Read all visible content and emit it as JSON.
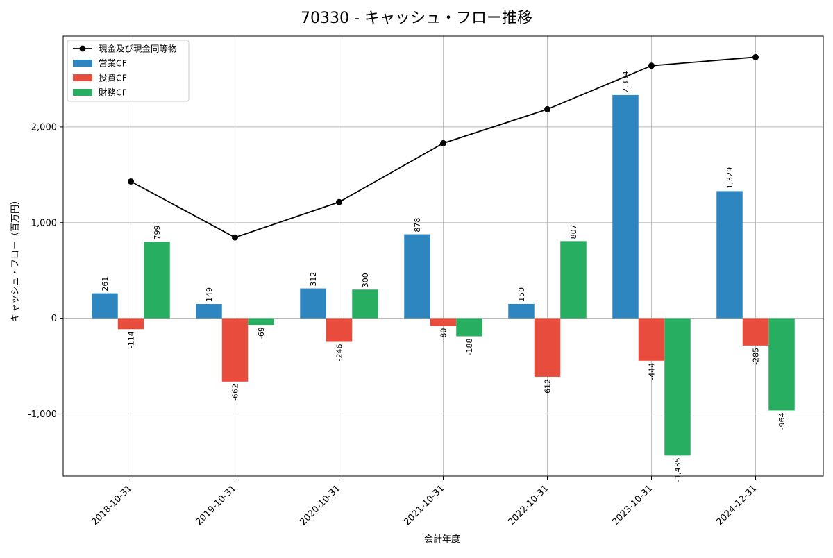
{
  "chart_data": {
    "type": "bar",
    "title": "70330 - キャッシュ・フロー推移",
    "xlabel": "会計年度",
    "ylabel": "キャッシュ・フロー（百万円）",
    "categories": [
      "2018-10-31",
      "2019-10-31",
      "2020-10-31",
      "2021-10-31",
      "2022-10-31",
      "2023-10-31",
      "2024-12-31"
    ],
    "series": [
      {
        "name": "営業CF",
        "kind": "bar",
        "color": "#2e86c1",
        "values": [
          261,
          149,
          312,
          878,
          150,
          2334,
          1329
        ],
        "labels": [
          "261",
          "149",
          "312",
          "878",
          "150",
          "2,334",
          "1,329"
        ]
      },
      {
        "name": "投資CF",
        "kind": "bar",
        "color": "#e74c3c",
        "values": [
          -114,
          -662,
          -246,
          -80,
          -612,
          -444,
          -285
        ],
        "labels": [
          "-114",
          "-662",
          "-246",
          "-80",
          "-612",
          "-444",
          "-285"
        ]
      },
      {
        "name": "財務CF",
        "kind": "bar",
        "color": "#27ae60",
        "values": [
          799,
          -69,
          300,
          -188,
          807,
          -1435,
          -964
        ],
        "labels": [
          "799",
          "-69",
          "300",
          "-188",
          "807",
          "-1,435",
          "-964"
        ]
      },
      {
        "name": "現金及び現金同等物",
        "kind": "line",
        "color": "#000000",
        "values": [
          1430,
          845,
          1215,
          1830,
          2185,
          2640,
          2730
        ]
      }
    ],
    "ylim": [
      -1650,
      2950
    ],
    "yticks": [
      -1000,
      0,
      1000,
      2000
    ],
    "ytick_labels": [
      "-1,000",
      "0",
      "1,000",
      "2,000"
    ],
    "grid": true,
    "legend_position": "top-left"
  }
}
